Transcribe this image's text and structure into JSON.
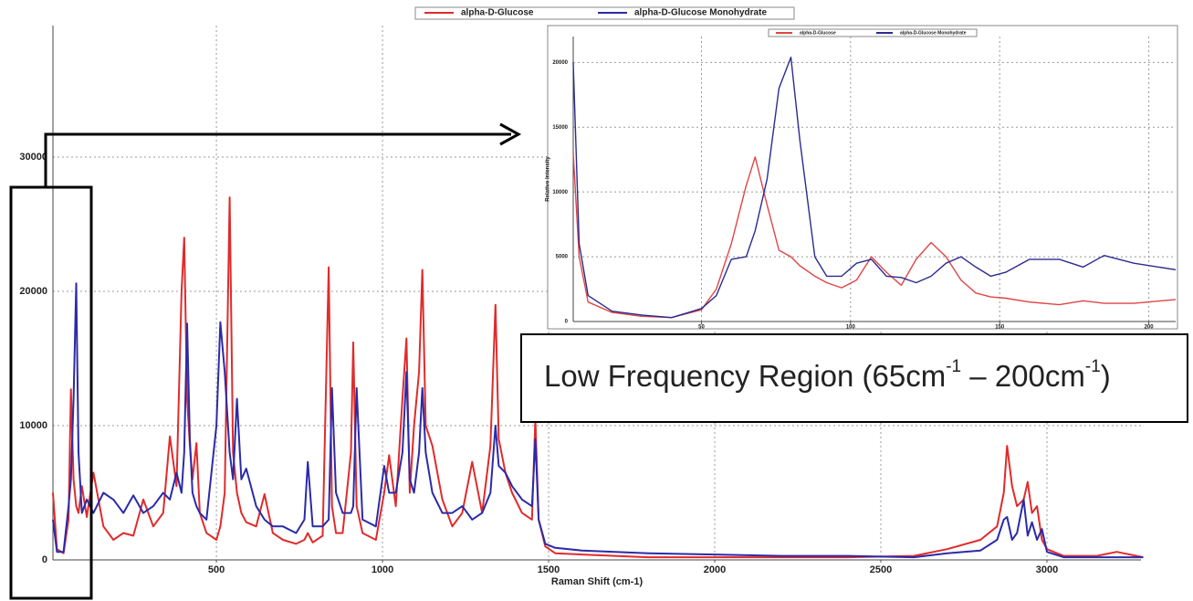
{
  "chart_data": [
    {
      "type": "line",
      "xlabel": "Raman Shift (cm-1)",
      "annotation": [
        "Low Frequency Region (65cm",
        "-1",
        " – 200cm",
        "-1",
        ")"
      ],
      "x": [
        8,
        20,
        40,
        55,
        62,
        70,
        78,
        85,
        95,
        110,
        130,
        160,
        190,
        220,
        250,
        280,
        310,
        340,
        360,
        380,
        395,
        403,
        412,
        420,
        428,
        440,
        450,
        470,
        500,
        512,
        525,
        540,
        550,
        562,
        575,
        590,
        620,
        645,
        670,
        700,
        740,
        765,
        775,
        790,
        820,
        838,
        848,
        860,
        880,
        905,
        912,
        922,
        940,
        980,
        1005,
        1020,
        1040,
        1060,
        1072,
        1082,
        1095,
        1110,
        1120,
        1130,
        1150,
        1180,
        1210,
        1240,
        1270,
        1300,
        1325,
        1340,
        1350,
        1370,
        1390,
        1420,
        1450,
        1460,
        1470,
        1490,
        1520,
        1600,
        1800,
        2000,
        2200,
        2400,
        2600,
        2700,
        2800,
        2850,
        2870,
        2880,
        2895,
        2910,
        2930,
        2942,
        2955,
        2970,
        2985,
        3000,
        3050,
        3150,
        3210,
        3290
      ],
      "series": [
        {
          "name": "alpha-D-Glucose",
          "color": "#e02b2b",
          "values": [
            5000,
            800,
            500,
            3000,
            12700,
            6000,
            4000,
            3500,
            5500,
            3200,
            6500,
            2500,
            1500,
            2000,
            1800,
            4500,
            2500,
            3500,
            9200,
            5500,
            20000,
            24000,
            12000,
            8500,
            6000,
            8700,
            3500,
            2000,
            1500,
            2500,
            5000,
            27000,
            8000,
            5000,
            3500,
            2800,
            2500,
            4900,
            2000,
            1500,
            1200,
            1500,
            2000,
            1300,
            1800,
            21800,
            4000,
            2000,
            2000,
            8000,
            16200,
            4000,
            2000,
            1500,
            5000,
            7800,
            4000,
            12000,
            16500,
            5000,
            10000,
            14000,
            21600,
            10000,
            8500,
            4500,
            2500,
            3500,
            7300,
            3500,
            8500,
            19000,
            9000,
            6500,
            5000,
            3500,
            3000,
            10500,
            3000,
            1000,
            500,
            400,
            200,
            200,
            200,
            200,
            300,
            800,
            1500,
            2500,
            5000,
            8500,
            5500,
            4000,
            4500,
            5800,
            3500,
            4000,
            1500,
            800,
            300,
            300,
            600,
            200
          ]
        },
        {
          "name": "alpha-D-Glucose Monohydrate",
          "color": "#2b2ba8",
          "values": [
            3000,
            600,
            600,
            4000,
            6000,
            12000,
            20600,
            8000,
            3500,
            4500,
            3500,
            5000,
            4500,
            3500,
            4800,
            3500,
            4000,
            5000,
            4500,
            6500,
            5000,
            8000,
            17600,
            9000,
            5000,
            4000,
            3500,
            3000,
            10000,
            17700,
            14000,
            8000,
            6000,
            12000,
            6000,
            6800,
            4000,
            3000,
            2500,
            2500,
            2000,
            3000,
            7300,
            2500,
            2500,
            3000,
            12800,
            5000,
            3500,
            3500,
            4000,
            12800,
            3000,
            2500,
            7000,
            5000,
            5000,
            8000,
            14000,
            6000,
            5000,
            8000,
            12800,
            8000,
            5000,
            3500,
            3500,
            4000,
            3000,
            3500,
            5000,
            10000,
            7000,
            6500,
            5500,
            4500,
            4000,
            9000,
            3000,
            1200,
            900,
            700,
            500,
            400,
            300,
            300,
            200,
            500,
            700,
            1500,
            3000,
            3200,
            1500,
            2000,
            4500,
            1800,
            2800,
            1500,
            2300,
            600,
            200,
            200,
            200,
            200
          ]
        }
      ],
      "xlim": [
        8,
        3283
      ],
      "ylim": [
        0,
        39800
      ],
      "xticks": [
        500,
        1000,
        1500,
        2000,
        2500,
        3000
      ],
      "yticks": [
        0,
        10000,
        20000,
        30000
      ],
      "grid": true,
      "legend": "top"
    },
    {
      "type": "line",
      "ylabel": "Relative Intensity",
      "x": [
        7,
        9,
        12,
        20,
        30,
        40,
        50,
        55,
        60,
        65,
        68,
        72,
        76,
        80,
        83,
        88,
        92,
        97,
        102,
        107,
        112,
        117,
        122,
        127,
        132,
        137,
        142,
        147,
        152,
        160,
        170,
        178,
        185,
        195,
        209
      ],
      "series": [
        {
          "name": "alpha-D-Glucose",
          "color": "#e04545",
          "values": [
            13000,
            5000,
            1500,
            700,
            400,
            300,
            900,
            2500,
            6000,
            10500,
            12700,
            9000,
            5500,
            5000,
            4300,
            3500,
            3000,
            2600,
            3200,
            5000,
            3800,
            2800,
            4800,
            6100,
            5000,
            3200,
            2200,
            1900,
            1800,
            1500,
            1300,
            1600,
            1400,
            1400,
            1700
          ]
        },
        {
          "name": "alpha-D-Glucose Monohydrate",
          "color": "#2b2b8f",
          "values": [
            20000,
            6000,
            2000,
            800,
            500,
            300,
            1000,
            2000,
            4800,
            5000,
            7000,
            11000,
            18000,
            20400,
            14000,
            5000,
            3500,
            3500,
            4500,
            4800,
            3500,
            3400,
            3000,
            3500,
            4500,
            5000,
            4200,
            3500,
            3800,
            4800,
            4800,
            4200,
            5100,
            4500,
            4000
          ]
        }
      ],
      "xlim": [
        7,
        209
      ],
      "ylim": [
        0,
        22000
      ],
      "xticks": [
        50,
        100,
        150,
        200
      ],
      "yticks": [
        0,
        5000,
        10000,
        15000,
        20000
      ],
      "grid": true,
      "legend": "top"
    }
  ]
}
